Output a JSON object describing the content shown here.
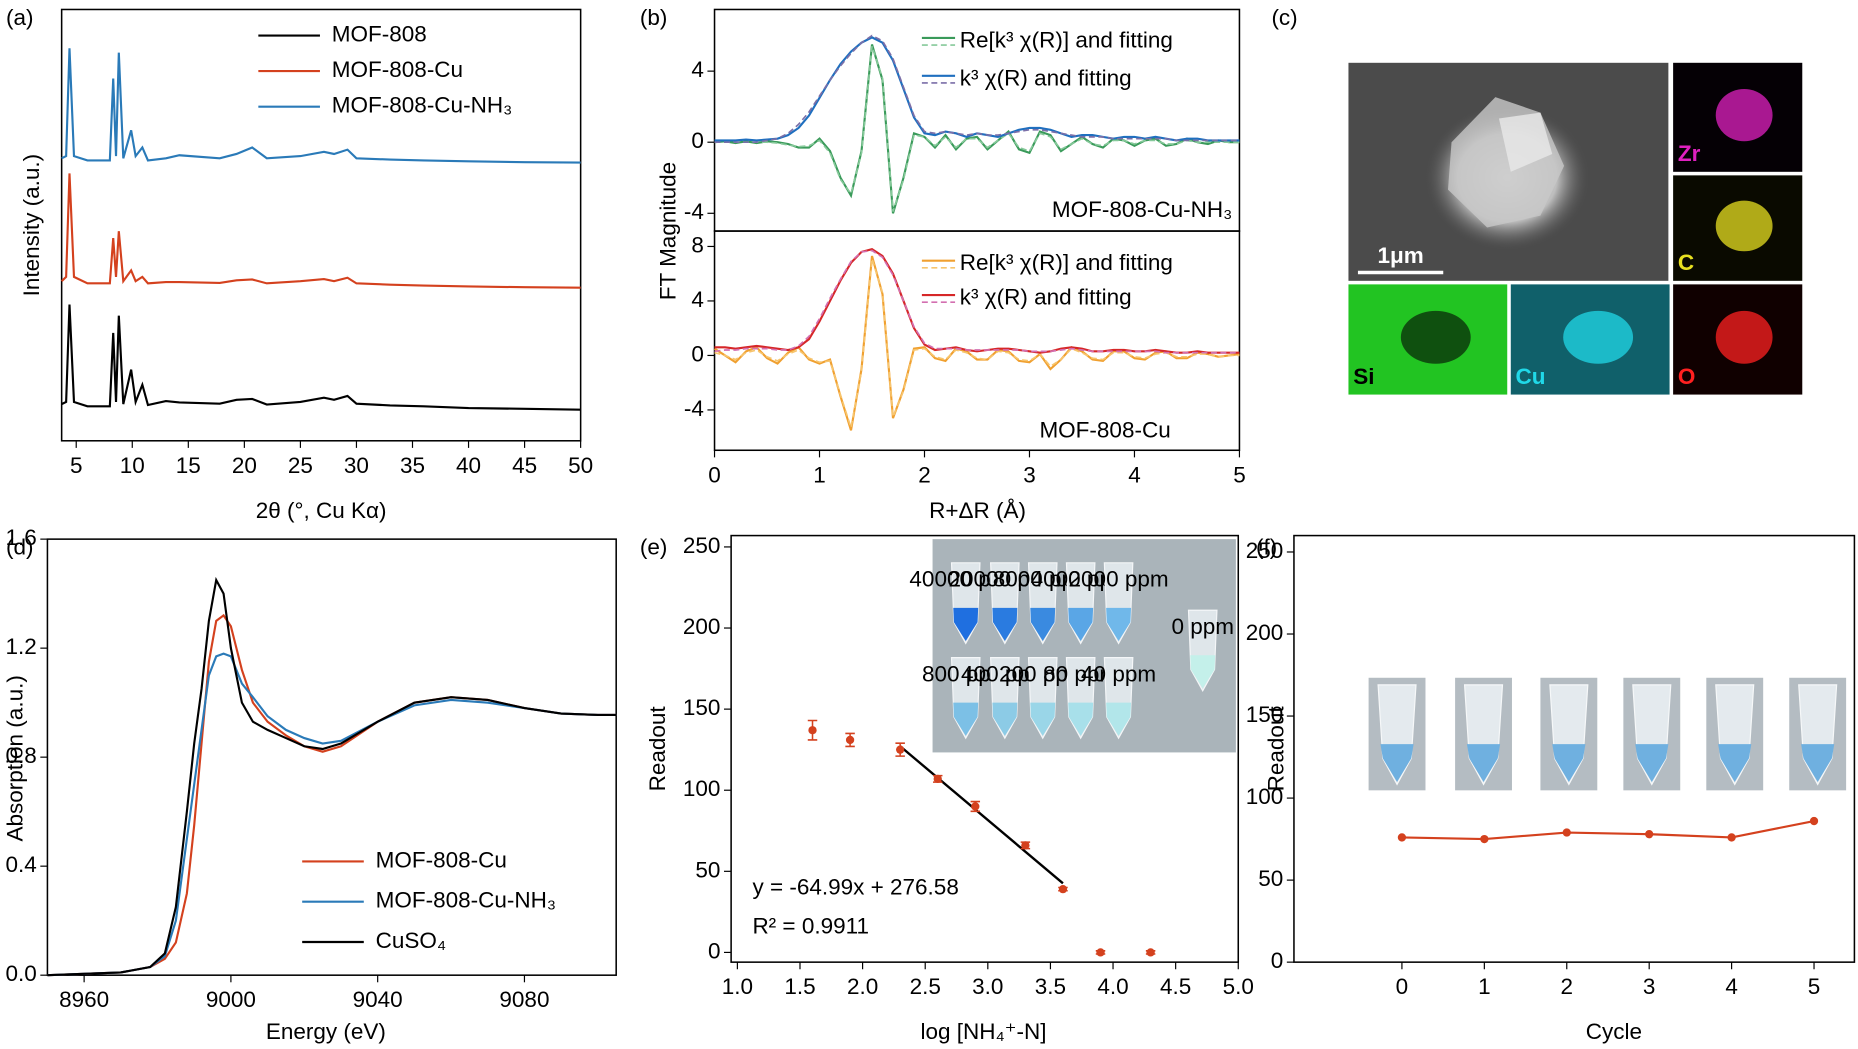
{
  "chart_data": [
    {
      "type": "line",
      "panel_label": "(a)",
      "xlabel": "2θ (°, Cu Kα)",
      "ylabel": "Intensity (a.u.)",
      "legend": "upper right",
      "xlim": [
        3.7,
        50
      ],
      "xticks": [
        5,
        10,
        15,
        20,
        25,
        30,
        35,
        40,
        45,
        50
      ],
      "ylim": [
        0,
        100
      ],
      "x": [
        3.7,
        4.1,
        4.4,
        4.8,
        6,
        8,
        8.3,
        8.55,
        8.8,
        9.2,
        9.9,
        10.3,
        10.9,
        11.4,
        13,
        14.2,
        17.8,
        19.3,
        20.7,
        22,
        25,
        27.1,
        28,
        29.2,
        30,
        33,
        36,
        40,
        45,
        50
      ],
      "series": [
        {
          "name": "MOF-808",
          "color": "#000000",
          "values": [
            8.5,
            9,
            31.6,
            9,
            8,
            8,
            25,
            9,
            29,
            8.5,
            16.5,
            9,
            13,
            8.3,
            9.2,
            8.9,
            8.6,
            9.5,
            9.7,
            8.4,
            9,
            10,
            9.5,
            10.4,
            8.6,
            8.2,
            8,
            7.6,
            7.4,
            7.2
          ]
        },
        {
          "name": "MOF-808-Cu",
          "color": "#d4411e",
          "values": [
            37,
            38,
            62,
            38,
            36.5,
            36.5,
            47,
            38,
            48.6,
            37,
            39.5,
            37,
            38,
            36.5,
            36.8,
            36.8,
            36.6,
            37.2,
            37.4,
            36.5,
            37,
            37.5,
            37,
            37.8,
            36.5,
            36.2,
            36,
            35.8,
            35.6,
            35.5
          ]
        },
        {
          "name": "MOF-808-Cu-NH₃",
          "color": "#2a7ab8",
          "values": [
            65.5,
            66,
            91,
            66,
            65,
            65,
            84,
            66,
            90,
            65.5,
            72,
            66,
            68,
            65,
            65.5,
            66.2,
            65.5,
            66.5,
            68,
            65.5,
            66,
            67,
            66.5,
            67.5,
            65.5,
            65.2,
            65,
            64.8,
            64.6,
            64.5
          ]
        }
      ]
    },
    {
      "type": "line",
      "panel_label": "(b)",
      "ylabel": "FT Magnitude",
      "legend": "upper right",
      "annotation": "MOF-808-Cu-NH₃",
      "xlim": [
        0,
        5
      ],
      "ylim": [
        -5,
        7.47
      ],
      "yticks": [
        -4,
        0,
        4
      ],
      "x": [
        0,
        0.1,
        0.2,
        0.3,
        0.4,
        0.5,
        0.6,
        0.7,
        0.8,
        0.9,
        1,
        1.1,
        1.2,
        1.3,
        1.4,
        1.5,
        1.6,
        1.7,
        1.8,
        1.9,
        2,
        2.1,
        2.2,
        2.3,
        2.4,
        2.5,
        2.6,
        2.7,
        2.8,
        2.9,
        3,
        3.1,
        3.2,
        3.3,
        3.4,
        3.5,
        3.6,
        3.7,
        3.8,
        3.9,
        4,
        4.1,
        4.2,
        4.3,
        4.4,
        4.5,
        4.6,
        4.7,
        4.8,
        4.9,
        5
      ],
      "series": [
        {
          "name": "Re[k³ χ(R)] and fitting",
          "color": "#3a9a5a",
          "values": [
            0,
            0.05,
            -0.05,
            0.05,
            -0.05,
            0.05,
            0,
            -0.1,
            -0.3,
            -0.3,
            0.2,
            -0.5,
            -2.0,
            -3.0,
            -0.5,
            5.5,
            3.5,
            -4.0,
            -2.0,
            0.5,
            0.3,
            -0.3,
            0.4,
            -0.4,
            0.2,
            0.3,
            -0.4,
            0.1,
            0.6,
            -0.4,
            -0.6,
            0.6,
            0.4,
            -0.5,
            -0.1,
            0.3,
            -0.1,
            -0.3,
            0.2,
            0.1,
            -0.2,
            0.1,
            0.2,
            -0.2,
            -0.1,
            0.2,
            0,
            -0.1,
            0.1,
            0,
            0
          ]
        },
        {
          "color": "#86c99a",
          "dash": true,
          "values": [
            0,
            0,
            0,
            0,
            0,
            0,
            -0.05,
            -0.15,
            -0.25,
            -0.2,
            0.1,
            -0.6,
            -2.1,
            -2.9,
            -0.6,
            5.4,
            3.6,
            -3.9,
            -2.1,
            0.4,
            0.3,
            -0.2,
            0.3,
            -0.3,
            0.2,
            0.2,
            -0.3,
            0.1,
            0.5,
            -0.3,
            -0.5,
            0.5,
            0.3,
            -0.4,
            -0.1,
            0.2,
            -0.1,
            -0.2,
            0.1,
            0.1,
            -0.1,
            0.1,
            0.1,
            -0.1,
            -0.1,
            0.1,
            0,
            0,
            0,
            0,
            0
          ]
        },
        {
          "name": "k³ χ(R) and fitting",
          "color": "#1f6fbf",
          "values": [
            0.1,
            0.1,
            0.1,
            0.15,
            0.1,
            0.15,
            0.2,
            0.4,
            0.8,
            1.5,
            2.5,
            3.5,
            4.4,
            5.1,
            5.6,
            5.9,
            5.6,
            4.6,
            3.0,
            1.4,
            0.5,
            0.4,
            0.6,
            0.5,
            0.3,
            0.5,
            0.4,
            0.3,
            0.5,
            0.7,
            0.8,
            0.8,
            0.7,
            0.5,
            0.3,
            0.4,
            0.4,
            0.3,
            0.2,
            0.3,
            0.3,
            0.2,
            0.3,
            0.2,
            0.1,
            0.2,
            0.2,
            0.1,
            0.1,
            0.1,
            0.1
          ]
        },
        {
          "color": "#7b6fa8",
          "dash": true,
          "values": [
            0,
            0,
            0,
            0,
            0,
            0.1,
            0.2,
            0.5,
            1.0,
            1.7,
            2.6,
            3.5,
            4.3,
            5.0,
            5.6,
            6.0,
            5.7,
            4.7,
            3.1,
            1.5,
            0.6,
            0.5,
            0.6,
            0.5,
            0.4,
            0.5,
            0.4,
            0.4,
            0.5,
            0.6,
            0.7,
            0.7,
            0.6,
            0.5,
            0.4,
            0.3,
            0.3,
            0.3,
            0.2,
            0.2,
            0.2,
            0.2,
            0.2,
            0.2,
            0.1,
            0.1,
            0.1,
            0.1,
            0.1,
            0.1,
            0.1
          ]
        }
      ]
    },
    {
      "type": "line",
      "xlabel": "R+ΔR (Å)",
      "legend": "upper right",
      "annotation": "MOF-808-Cu",
      "xlim": [
        0,
        5
      ],
      "xticks": [
        0,
        1,
        2,
        3,
        4,
        5
      ],
      "ylim": [
        -6.96,
        9.13
      ],
      "yticks": [
        -4,
        0,
        4,
        8
      ],
      "x": [
        0,
        0.1,
        0.2,
        0.3,
        0.4,
        0.5,
        0.6,
        0.7,
        0.8,
        0.9,
        1,
        1.1,
        1.2,
        1.3,
        1.4,
        1.5,
        1.6,
        1.7,
        1.8,
        1.9,
        2,
        2.1,
        2.2,
        2.3,
        2.4,
        2.5,
        2.6,
        2.7,
        2.8,
        2.9,
        3,
        3.1,
        3.2,
        3.3,
        3.4,
        3.5,
        3.6,
        3.7,
        3.8,
        3.9,
        4,
        4.1,
        4.2,
        4.3,
        4.4,
        4.5,
        4.6,
        4.7,
        4.8,
        4.9,
        5
      ],
      "series": [
        {
          "name": "Re[k³ χ(R)] and fitting",
          "color": "#f0a030",
          "values": [
            0.5,
            0,
            -0.5,
            0.3,
            0.6,
            -0.2,
            -0.6,
            0.2,
            0.6,
            -0.3,
            -0.6,
            -0.3,
            -3.0,
            -5.5,
            -1.0,
            7.3,
            4.5,
            -4.6,
            -2.5,
            0.5,
            0.6,
            -0.2,
            -0.4,
            0.5,
            0.3,
            -0.3,
            -0.3,
            0.4,
            0.3,
            -0.4,
            -0.5,
            0.1,
            -1.0,
            -0.3,
            0.6,
            0.3,
            -0.3,
            -0.4,
            0.3,
            0.3,
            -0.2,
            -0.3,
            0.2,
            0.3,
            -0.2,
            -0.2,
            0.2,
            0.1,
            -0.1,
            0,
            0.1
          ]
        },
        {
          "color": "#f7c56e",
          "dash": true,
          "values": [
            0.2,
            0,
            -0.3,
            0.2,
            0.4,
            -0.1,
            -0.4,
            0.1,
            0.4,
            -0.2,
            -0.5,
            -0.4,
            -2.9,
            -5.3,
            -1.1,
            7.1,
            4.6,
            -4.5,
            -2.6,
            0.4,
            0.5,
            -0.1,
            -0.3,
            0.4,
            0.2,
            -0.2,
            -0.3,
            0.3,
            0.2,
            -0.3,
            -0.4,
            0.1,
            -0.8,
            -0.3,
            0.5,
            0.2,
            -0.2,
            -0.3,
            0.2,
            0.2,
            -0.1,
            -0.2,
            0.1,
            0.2,
            -0.1,
            -0.1,
            0.1,
            0.1,
            -0.1,
            0,
            0
          ]
        },
        {
          "name": "k³ χ(R) and fitting",
          "color": "#d62728",
          "values": [
            0.6,
            0.6,
            0.5,
            0.6,
            0.7,
            0.6,
            0.5,
            0.4,
            0.6,
            1.2,
            2.5,
            4.0,
            5.5,
            6.8,
            7.6,
            7.8,
            7.3,
            6.0,
            4.0,
            2.0,
            0.8,
            0.4,
            0.5,
            0.6,
            0.4,
            0.3,
            0.4,
            0.5,
            0.5,
            0.4,
            0.3,
            0.2,
            0.3,
            0.5,
            0.6,
            0.5,
            0.3,
            0.3,
            0.4,
            0.4,
            0.3,
            0.3,
            0.4,
            0.3,
            0.2,
            0.2,
            0.3,
            0.2,
            0.2,
            0.2,
            0.2
          ]
        },
        {
          "color": "#d36fb0",
          "dash": true,
          "values": [
            0.3,
            0.4,
            0.4,
            0.5,
            0.5,
            0.5,
            0.4,
            0.4,
            0.7,
            1.4,
            2.7,
            4.2,
            5.6,
            6.9,
            7.6,
            7.7,
            7.2,
            5.9,
            4.0,
            2.1,
            0.9,
            0.5,
            0.5,
            0.5,
            0.4,
            0.4,
            0.4,
            0.4,
            0.4,
            0.4,
            0.3,
            0.3,
            0.3,
            0.4,
            0.5,
            0.4,
            0.3,
            0.3,
            0.3,
            0.3,
            0.3,
            0.3,
            0.3,
            0.2,
            0.2,
            0.2,
            0.2,
            0.2,
            0.2,
            0.2,
            0.2
          ]
        }
      ]
    },
    {
      "type": "line",
      "panel_label": "(d)",
      "xlabel": "Energy (eV)",
      "ylabel": "Absorption (a.u.)",
      "legend": "lower right",
      "xlim": [
        8950,
        9105
      ],
      "xticks": [
        8960,
        9000,
        9040,
        9080
      ],
      "ylim": [
        0,
        1.6
      ],
      "yticks": [
        {
          "value": 0,
          "label": "0.0"
        },
        0.4,
        0.8,
        1.2,
        1.6
      ],
      "x": [
        8950,
        8970,
        8978,
        8982,
        8985,
        8988,
        8990,
        8992,
        8994,
        8996,
        8998,
        9000,
        9003,
        9006,
        9010,
        9015,
        9020,
        9025,
        9030,
        9040,
        9050,
        9060,
        9070,
        9080,
        9090,
        9100,
        9105
      ],
      "series": [
        {
          "name": "MOF-808-Cu",
          "color": "#d4411e",
          "values": [
            0.0,
            0.01,
            0.03,
            0.06,
            0.12,
            0.3,
            0.55,
            0.85,
            1.15,
            1.3,
            1.32,
            1.28,
            1.12,
            1.0,
            0.93,
            0.88,
            0.84,
            0.82,
            0.84,
            0.93,
            1.0,
            1.02,
            1.01,
            0.98,
            0.96,
            0.955,
            0.955
          ]
        },
        {
          "name": "MOF-808-Cu-NH₃",
          "color": "#2a7ab8",
          "values": [
            0.0,
            0.01,
            0.03,
            0.07,
            0.2,
            0.5,
            0.7,
            0.9,
            1.1,
            1.17,
            1.18,
            1.17,
            1.07,
            1.02,
            0.95,
            0.9,
            0.87,
            0.85,
            0.86,
            0.93,
            0.99,
            1.01,
            1.0,
            0.98,
            0.96,
            0.955,
            0.955
          ]
        },
        {
          "name": "CuSO₄",
          "color": "#000000",
          "values": [
            0.0,
            0.01,
            0.03,
            0.08,
            0.25,
            0.6,
            0.85,
            1.05,
            1.3,
            1.45,
            1.4,
            1.2,
            1.0,
            0.93,
            0.9,
            0.87,
            0.84,
            0.83,
            0.85,
            0.93,
            1.0,
            1.02,
            1.01,
            0.98,
            0.96,
            0.955,
            0.955
          ]
        }
      ]
    },
    {
      "type": "scatter",
      "panel_label": "(e)",
      "xlabel": "log [NH₄⁺-N]",
      "ylabel": "Readout",
      "color": "#d4411e",
      "xlim": [
        0.95,
        5.0
      ],
      "xticks": [
        {
          "value": 1.0,
          "label": "1.0"
        },
        1.5,
        {
          "value": 2.0,
          "label": "2.0"
        },
        2.5,
        {
          "value": 3.0,
          "label": "3.0"
        },
        3.5,
        {
          "value": 4.0,
          "label": "4.0"
        },
        4.5,
        {
          "value": 5.0,
          "label": "5.0"
        }
      ],
      "ylim": [
        -6,
        257
      ],
      "yticks": [
        0,
        50,
        100,
        150,
        200,
        250
      ],
      "x": [
        1.6,
        1.9,
        2.3,
        2.6,
        2.9,
        3.3,
        3.6,
        3.9,
        4.3
      ],
      "values": [
        137,
        131,
        125,
        107,
        90,
        66,
        39,
        0,
        0
      ],
      "errors": [
        6,
        4,
        4,
        2,
        3,
        2,
        1,
        1,
        1
      ],
      "fit": {
        "color": "#000000",
        "x": [
          2.3,
          3.6
        ],
        "values": [
          127.1,
          42.62
        ]
      },
      "fit_equation": "y = -64.99x + 276.58",
      "r_squared": "R² = 0.9911",
      "inset_labels": [
        "40000 ppm",
        "20000 ppm",
        "8000 ppm",
        "4000 ppm",
        "2000 ppm",
        "800 ppm",
        "400 ppm",
        "200 ppm",
        "80 ppm",
        "40 ppm",
        "0 ppm"
      ]
    },
    {
      "type": "line",
      "panel_label": "(f)",
      "xlabel": "Cycle",
      "ylabel": "Readout",
      "markers": true,
      "xlim": [
        -1.31,
        5.49
      ],
      "xticks": [
        0,
        1,
        2,
        3,
        4,
        5
      ],
      "ylim": [
        0,
        260
      ],
      "yticks": [
        0,
        50,
        100,
        150,
        200,
        250
      ],
      "x": [
        0,
        1,
        2,
        3,
        4,
        5
      ],
      "series": [
        {
          "color": "#d4411e",
          "values": [
            76,
            75,
            79,
            78,
            76,
            86
          ]
        }
      ]
    }
  ],
  "image_panel": {
    "panel_label": "(c)",
    "scale_bar": "1μm",
    "maps": [
      {
        "label": "Zr",
        "color": "#e020c0"
      },
      {
        "label": "C",
        "color": "#e8e020"
      },
      {
        "label": "Si",
        "color": "#0a2a0a"
      },
      {
        "label": "Cu",
        "color": "#20d8e8"
      },
      {
        "label": "O",
        "color": "#ff2020"
      }
    ]
  }
}
